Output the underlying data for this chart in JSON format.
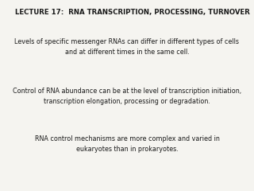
{
  "title": "LECTURE 17:  RNA TRANSCRIPTION, PROCESSING, TURNOVER",
  "paragraph1_line1": "Levels of specific messenger RNAs can differ in different types of cells",
  "paragraph1_line2": "and at different times in the same cell.",
  "paragraph2_line1": "Control of RNA abundance can be at the level of transcription initiation,",
  "paragraph2_line2": "transcription elongation, processing or degradation.",
  "paragraph3_line1": "RNA control mechanisms are more complex and varied in",
  "paragraph3_line2": "eukaryotes than in prokaryotes.",
  "bg_color": "#f5f4f0",
  "text_color": "#1a1a1a",
  "title_fontsize": 6.2,
  "body_fontsize": 5.8
}
